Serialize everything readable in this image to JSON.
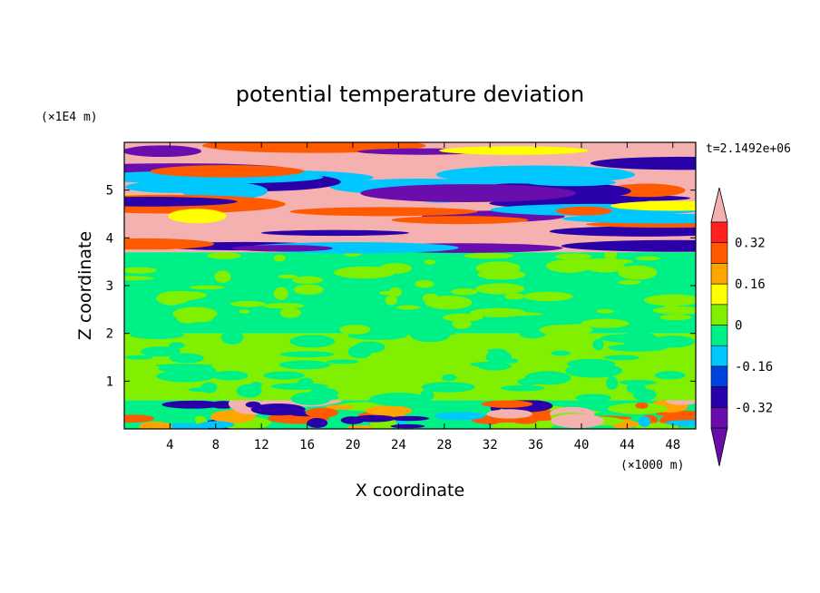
{
  "chart_data": {
    "type": "heatmap",
    "title": "potential temperature deviation",
    "xlabel": "X coordinate",
    "ylabel": "Z coordinate",
    "x_scale_label": "(×1000 m)",
    "y_scale_label": "(×1E4 m)",
    "time_label": "t=2.1492e+06",
    "xlim": [
      0,
      50
    ],
    "ylim": [
      0,
      6
    ],
    "x_ticks": [
      4,
      8,
      12,
      16,
      20,
      24,
      28,
      32,
      36,
      40,
      44,
      48
    ],
    "y_ticks": [
      1,
      2,
      3,
      4,
      5
    ],
    "colorbar": {
      "levels": [
        -0.4,
        -0.32,
        -0.24,
        -0.16,
        -0.08,
        0,
        0.08,
        0.16,
        0.24,
        0.32,
        0.4
      ],
      "tick_values": [
        -0.32,
        -0.16,
        0,
        0.16,
        0.32
      ],
      "tick_labels": [
        "-0.32",
        "-0.16",
        "0",
        "0.16",
        "0.32"
      ],
      "colors": [
        "#6a0dad",
        "#2a00a8",
        "#0044e0",
        "#00c8ff",
        "#00f088",
        "#80f000",
        "#ffff00",
        "#ffa500",
        "#ff5a00",
        "#ff2020",
        "#f5b0b0"
      ],
      "extend": "both"
    },
    "bands": [
      {
        "z_range": [
          0,
          0.6
        ],
        "dominant": "#00f088",
        "mixed": [
          "#00c8ff",
          "#80f000",
          "#ffa500",
          "#ff5a00",
          "#2a00a8",
          "#f5b0b0"
        ]
      },
      {
        "z_range": [
          0.6,
          2.0
        ],
        "dominant": "#80f000",
        "mixed": [
          "#00f088"
        ]
      },
      {
        "z_range": [
          2.0,
          3.7
        ],
        "dominant": "#00f088",
        "mixed": [
          "#80f000"
        ]
      },
      {
        "z_range": [
          3.7,
          6.0
        ],
        "dominant": "#f5b0b0",
        "mixed": [
          "#6a0dad",
          "#2a00a8",
          "#00c8ff",
          "#ffff00",
          "#ff5a00"
        ]
      }
    ]
  }
}
